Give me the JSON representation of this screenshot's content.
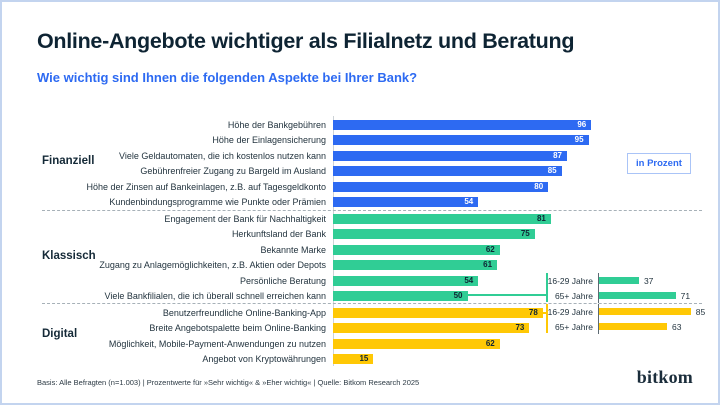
{
  "header": {
    "title": "Online-Angebote wichtiger als Filialnetz und Beratung",
    "subtitle": "Wie wichtig sind Ihnen die folgenden Aspekte bei Ihrer Bank?"
  },
  "unit_badge": "in Prozent",
  "footer": {
    "note": "Basis: Alle Befragten (n=1.003) | Prozentwerte für »Sehr wichtig« & »Eher wichtig« | Quelle: Bitkom Research 2025",
    "logo": "bitkom"
  },
  "colors": {
    "finanziell_bar": "#2d6af2",
    "klassisch_bar": "#30cd95",
    "digital_bar": "#ffc805",
    "heading_text": "#0e2433",
    "subtitle_text": "#2d6af2"
  },
  "chart_data": {
    "type": "bar",
    "orientation": "horizontal",
    "title": "Online-Angebote wichtiger als Filialnetz und Beratung",
    "subtitle": "Wie wichtig sind Ihnen die folgenden Aspekte bei Ihrer Bank?",
    "unit": "in Prozent",
    "xlim": [
      0,
      100
    ],
    "grid": false,
    "groups": [
      {
        "name": "Finanziell",
        "color": "#2d6af2",
        "rows": [
          {
            "label": "Höhe der Bankgebühren",
            "value": 96
          },
          {
            "label": "Höhe der Einlagensicherung",
            "value": 95
          },
          {
            "label": "Viele Geldautomaten, die ich kostenlos nutzen kann",
            "value": 87
          },
          {
            "label": "Gebührenfreier Zugang zu Bargeld im Ausland",
            "value": 85
          },
          {
            "label": "Höhe der Zinsen auf Bankeinlagen, z.B. auf Tagesgeldkonto",
            "value": 80
          },
          {
            "label": "Kundenbindungsprogramme wie Punkte oder Prämien",
            "value": 54
          }
        ]
      },
      {
        "name": "Klassisch",
        "color": "#30cd95",
        "rows": [
          {
            "label": "Engagement der Bank für Nachhaltigkeit",
            "value": 81
          },
          {
            "label": "Herkunftsland der Bank",
            "value": 75
          },
          {
            "label": "Bekannte Marke",
            "value": 62
          },
          {
            "label": "Zugang zu Anlagemöglichkeiten, z.B. Aktien oder Depots",
            "value": 61
          },
          {
            "label": "Persönliche Beratung",
            "value": 54
          },
          {
            "label": "Viele Bankfilialen, die ich überall schnell erreichen kann",
            "value": 50
          }
        ]
      },
      {
        "name": "Digital",
        "color": "#ffc805",
        "rows": [
          {
            "label": "Benutzerfreundliche Online-Banking-App",
            "value": 78
          },
          {
            "label": "Breite Angebotspalette beim Online-Banking",
            "value": 73
          },
          {
            "label": "Möglichkeit, Mobile-Payment-Anwendungen zu nutzen",
            "value": 62
          },
          {
            "label": "Angebot von Kryptowährungen",
            "value": 15
          }
        ]
      }
    ],
    "breakouts": [
      {
        "for": "Viele Bankfilialen, die ich überall schnell erreichen kann",
        "color": "#30cd95",
        "rows": [
          {
            "label": "16-29 Jahre",
            "value": 37
          },
          {
            "label": "65+ Jahre",
            "value": 71
          }
        ]
      },
      {
        "for": "Benutzerfreundliche Online-Banking-App",
        "color": "#ffc805",
        "rows": [
          {
            "label": "16-29 Jahre",
            "value": 85
          },
          {
            "label": "65+ Jahre",
            "value": 63
          }
        ]
      }
    ]
  }
}
